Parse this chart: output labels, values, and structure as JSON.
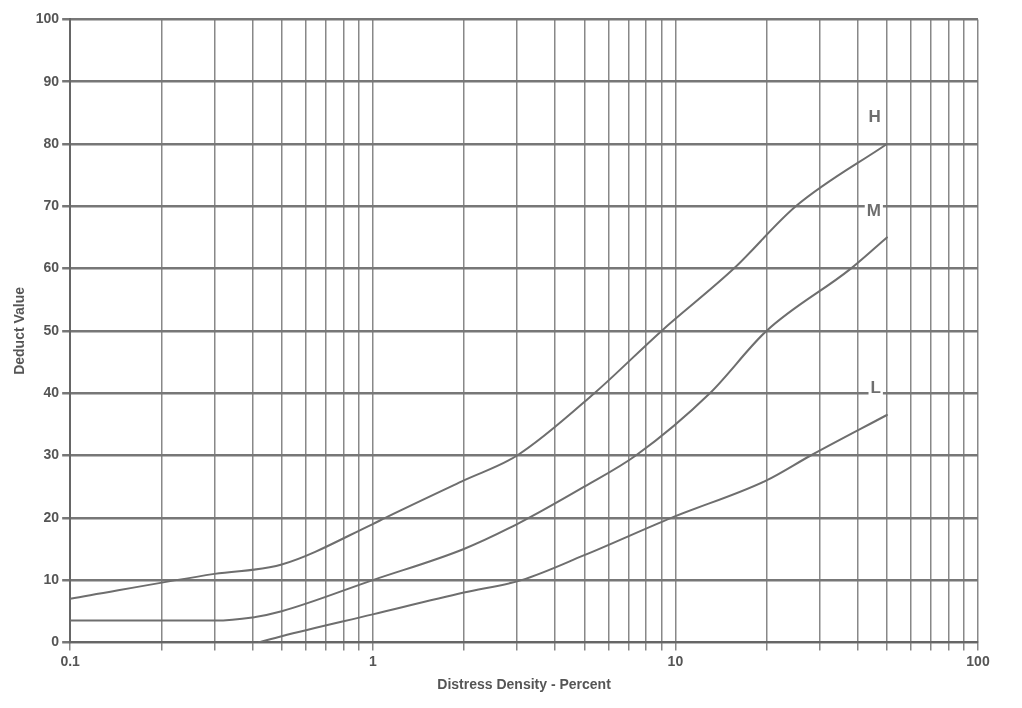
{
  "chart_data": {
    "type": "line",
    "xlabel": "Distress Density - Percent",
    "ylabel": "Deduct Value",
    "log": "x",
    "grid": true,
    "legend": false,
    "marker": "none",
    "line_style": "solid",
    "xlim": [
      0.1,
      100
    ],
    "ylim": [
      0,
      100
    ],
    "xticks": [
      0.1,
      {
        "value": 0.2,
        "label": null
      },
      {
        "value": 0.3,
        "label": null
      },
      {
        "value": 0.4,
        "label": null
      },
      {
        "value": 0.5,
        "label": null
      },
      {
        "value": 0.6,
        "label": null
      },
      {
        "value": 0.7,
        "label": null
      },
      {
        "value": 0.8,
        "label": null
      },
      {
        "value": 0.9,
        "label": null
      },
      1,
      {
        "value": 2,
        "label": null
      },
      {
        "value": 3,
        "label": null
      },
      {
        "value": 4,
        "label": null
      },
      {
        "value": 5,
        "label": null
      },
      {
        "value": 6,
        "label": null
      },
      {
        "value": 7,
        "label": null
      },
      {
        "value": 8,
        "label": null
      },
      {
        "value": 9,
        "label": null
      },
      10,
      {
        "value": 20,
        "label": null
      },
      {
        "value": 30,
        "label": null
      },
      {
        "value": 40,
        "label": null
      },
      {
        "value": 50,
        "label": null
      },
      {
        "value": 60,
        "label": null
      },
      {
        "value": 70,
        "label": null
      },
      {
        "value": 80,
        "label": null
      },
      {
        "value": 90,
        "label": null
      },
      100
    ],
    "yticks": [
      0,
      10,
      20,
      30,
      40,
      50,
      60,
      70,
      80,
      90,
      100
    ],
    "series": [
      {
        "name": "H",
        "color": "#6e6e6e",
        "x": [
          0.1,
          0.3,
          0.5,
          1,
          1.1,
          2,
          3,
          5.4,
          9,
          15.6,
          25,
          50
        ],
        "values": [
          7,
          11,
          12.5,
          19,
          20,
          26,
          30,
          40,
          50,
          60,
          70,
          80
        ]
      },
      {
        "name": "M",
        "color": "#6e6e6e",
        "x": [
          0.1,
          0.3,
          0.4,
          0.5,
          1,
          2,
          3,
          5,
          7.4,
          13,
          20,
          38,
          50
        ],
        "values": [
          3.5,
          3.5,
          4,
          5,
          10,
          15,
          19,
          25,
          30,
          40,
          50,
          60,
          65
        ]
      },
      {
        "name": "L",
        "color": "#6e6e6e",
        "x": [
          0.42,
          0.5,
          1,
          2,
          3.1,
          5,
          9.7,
          20,
          28,
          50
        ],
        "values": [
          0,
          1,
          4.5,
          8,
          10,
          14,
          20,
          26,
          30,
          36.5
        ]
      }
    ]
  }
}
